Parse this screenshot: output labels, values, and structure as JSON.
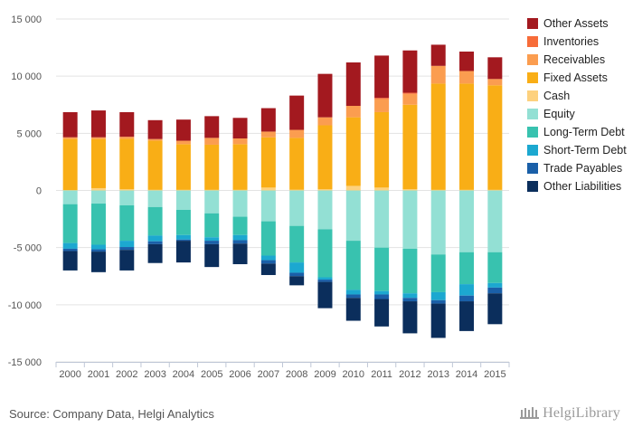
{
  "chart_data": {
    "type": "bar",
    "stacked": true,
    "categories": [
      "2000",
      "2001",
      "2002",
      "2003",
      "2004",
      "2005",
      "2006",
      "2007",
      "2008",
      "2009",
      "2010",
      "2011",
      "2012",
      "2013",
      "2014",
      "2015"
    ],
    "ylim": [
      -15000,
      15000
    ],
    "yticks": [
      -15000,
      -10000,
      -5000,
      0,
      5000,
      10000,
      15000
    ],
    "ytick_labels": [
      "-15 000",
      "-10 000",
      "-5 000",
      "0",
      "5 000",
      "10 000",
      "15 000"
    ],
    "grid": true,
    "legend_position": "right",
    "positive_series": [
      {
        "name": "Cash",
        "color": "#FDD17E",
        "values": [
          30,
          200,
          100,
          50,
          50,
          50,
          50,
          250,
          60,
          100,
          400,
          250,
          100,
          50,
          50,
          50
        ]
      },
      {
        "name": "Fixed Assets",
        "color": "#F9AE16",
        "values": [
          4470,
          4300,
          4420,
          4300,
          4000,
          3950,
          4000,
          4400,
          4540,
          5600,
          6000,
          6600,
          7400,
          9300,
          9300,
          9150
        ]
      },
      {
        "name": "Receivables",
        "color": "#FB9D50",
        "values": [
          150,
          150,
          180,
          150,
          300,
          600,
          500,
          500,
          700,
          700,
          1000,
          1150,
          950,
          1550,
          1100,
          550
        ]
      },
      {
        "name": "Inventories",
        "color": "#F76C39",
        "values": [
          0,
          0,
          0,
          0,
          0,
          0,
          0,
          0,
          0,
          0,
          0,
          100,
          100,
          0,
          0,
          0
        ]
      },
      {
        "name": "Other Assets",
        "color": "#A3191F",
        "values": [
          2200,
          2350,
          2150,
          1650,
          1850,
          1900,
          1800,
          2050,
          3000,
          3800,
          3800,
          3700,
          3700,
          1850,
          1700,
          1900
        ]
      }
    ],
    "negative_series": [
      {
        "name": "Equity",
        "color": "#93E0D4",
        "values": [
          -1200,
          -1150,
          -1300,
          -1450,
          -1700,
          -2000,
          -2300,
          -2700,
          -3100,
          -3400,
          -4400,
          -5000,
          -5100,
          -5600,
          -5400,
          -5400
        ]
      },
      {
        "name": "Long-Term Debt",
        "color": "#38C2AF",
        "values": [
          -3400,
          -3600,
          -3100,
          -2500,
          -2200,
          -2100,
          -1600,
          -3000,
          -3200,
          -4200,
          -4300,
          -3800,
          -3900,
          -3300,
          -2800,
          -2700
        ]
      },
      {
        "name": "Short-Term Debt",
        "color": "#1CA8D0",
        "values": [
          -500,
          -400,
          -550,
          -500,
          -400,
          -300,
          -450,
          -400,
          -900,
          -200,
          -400,
          -300,
          -400,
          -700,
          -1000,
          -400
        ]
      },
      {
        "name": "Trade Payables",
        "color": "#1A5FA8",
        "values": [
          -200,
          -200,
          -250,
          -250,
          -100,
          -300,
          -300,
          -300,
          -300,
          -200,
          -300,
          -400,
          -300,
          -300,
          -500,
          -500
        ]
      },
      {
        "name": "Other Liabilities",
        "color": "#0B2E5C",
        "values": [
          -1700,
          -1800,
          -1800,
          -1650,
          -1900,
          -2000,
          -1800,
          -1000,
          -800,
          -2300,
          -2000,
          -2400,
          -2800,
          -3000,
          -2600,
          -2700
        ]
      }
    ],
    "legend": [
      {
        "name": "Other Assets",
        "color": "#A3191F"
      },
      {
        "name": "Inventories",
        "color": "#F76C39"
      },
      {
        "name": "Receivables",
        "color": "#FB9D50"
      },
      {
        "name": "Fixed Assets",
        "color": "#F9AE16"
      },
      {
        "name": "Cash",
        "color": "#FDD17E"
      },
      {
        "name": "Equity",
        "color": "#93E0D4"
      },
      {
        "name": "Long-Term Debt",
        "color": "#38C2AF"
      },
      {
        "name": "Short-Term Debt",
        "color": "#1CA8D0"
      },
      {
        "name": "Trade Payables",
        "color": "#1A5FA8"
      },
      {
        "name": "Other Liabilities",
        "color": "#0B2E5C"
      }
    ]
  },
  "footer": {
    "source": "Source: Company Data, Helgi Analytics",
    "logo_text": "HelgiLibrary"
  }
}
